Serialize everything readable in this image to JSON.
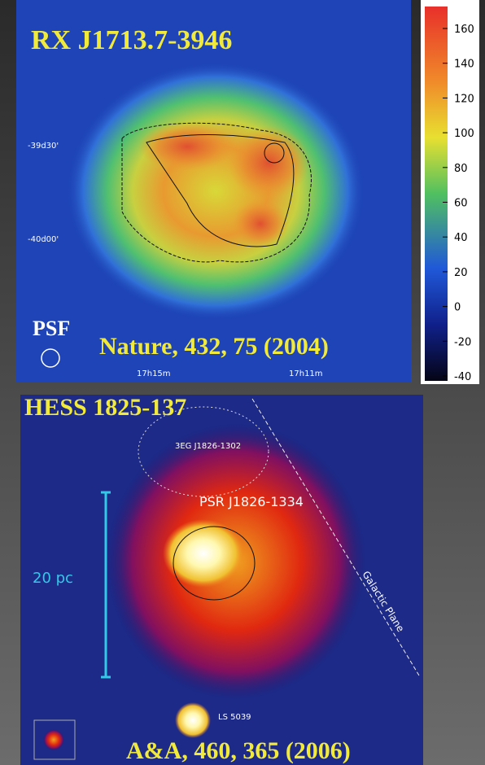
{
  "top_panel": {
    "title": "RX J1713.7-3946",
    "dec_labels": [
      "-39d30'",
      "-40d00'"
    ],
    "ra_labels": [
      "17h15m",
      "17h11m"
    ],
    "psf_label": "PSF",
    "reference": "Nature, 432, 75 (2004)",
    "colorbar_ticks": [
      "160",
      "140",
      "120",
      "100",
      "80",
      "60",
      "40",
      "20",
      "0",
      "-20",
      "-40"
    ]
  },
  "bottom_panel": {
    "title": "HESS 1825-137",
    "source_label": "3EG J1826-1302",
    "pulsar_label": "PSR J1826-1334",
    "scale_label": "20 pc",
    "plane_label": "Galactic Plane",
    "binary_label": "LS 5039",
    "reference": "A&A, 460, 365 (2006)"
  }
}
